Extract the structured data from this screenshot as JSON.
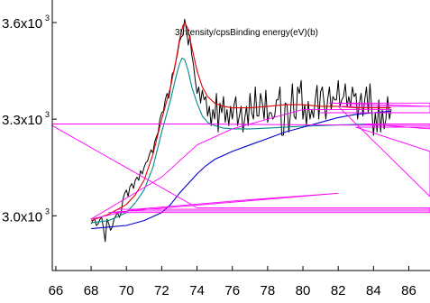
{
  "chart_data": {
    "type": "line",
    "title": "",
    "xlabel": "Binding energy (eV)",
    "ylabel": "Intensity/cps",
    "axis_title_lettering": "3Intensity/cpsBinding energy(eV)(b)",
    "xlim": [
      65.8,
      87.2
    ],
    "ylim": [
      2830,
      3670
    ],
    "x_ticks": [
      66,
      68,
      70,
      72,
      74,
      76,
      78,
      80,
      82,
      84,
      86
    ],
    "x_tick_labels": [
      "66",
      "68",
      "70",
      "72",
      "74",
      "76",
      "78",
      "80",
      "82",
      "84",
      "86"
    ],
    "y_ticks": [
      3000,
      3300,
      3600
    ],
    "y_tick_labels": [
      {
        "mantissa": "3.0x10",
        "exponent": "3"
      },
      {
        "mantissa": "3.3x10",
        "exponent": "3"
      },
      {
        "mantissa": "3.6x10",
        "exponent": "3"
      }
    ],
    "grid": false,
    "legend": "none",
    "colors": {
      "raw": "#000000",
      "envelope": "#dd0000",
      "peak": "#008b8b",
      "background": "#0000cc",
      "artifact": "#ff00ff"
    },
    "series": [
      {
        "key": "raw",
        "style": "noisy",
        "x": [
          68.0,
          68.1,
          68.2,
          68.3,
          68.4,
          68.5,
          68.6,
          68.7,
          68.8,
          68.9,
          69.0,
          69.1,
          69.2,
          69.3,
          69.4,
          69.5,
          69.6,
          69.7,
          69.8,
          69.9,
          70.0,
          70.1,
          70.2,
          70.3,
          70.4,
          70.5,
          70.6,
          70.7,
          70.8,
          70.9,
          71.0,
          71.1,
          71.2,
          71.3,
          71.4,
          71.5,
          71.6,
          71.7,
          71.8,
          71.9,
          72.0,
          72.1,
          72.2,
          72.3,
          72.4,
          72.5,
          72.6,
          72.7,
          72.8,
          72.9,
          73.0,
          73.1,
          73.2,
          73.3,
          73.4,
          73.5,
          73.6,
          73.7,
          73.8,
          73.9,
          74.0,
          74.1,
          74.2,
          74.3,
          74.4,
          74.5,
          74.6,
          74.7,
          74.8,
          74.9,
          75.0,
          75.1,
          75.2,
          75.3,
          75.4,
          75.5,
          75.6,
          75.7,
          75.8,
          75.9,
          76.0,
          76.1,
          76.2,
          76.3,
          76.4,
          76.5,
          76.6,
          76.7,
          76.8,
          76.9,
          77.0,
          77.1,
          77.2,
          77.3,
          77.4,
          77.5,
          77.6,
          77.7,
          77.8,
          77.9,
          78.0,
          78.1,
          78.2,
          78.3,
          78.4,
          78.5,
          78.6,
          78.7,
          78.8,
          78.9,
          79.0,
          79.1,
          79.2,
          79.3,
          79.4,
          79.5,
          79.6,
          79.7,
          79.8,
          79.9,
          80.0,
          80.1,
          80.2,
          80.3,
          80.4,
          80.5,
          80.6,
          80.7,
          80.8,
          80.9,
          81.0,
          81.1,
          81.2,
          81.3,
          81.4,
          81.5,
          81.6,
          81.7,
          81.8,
          81.9,
          82.0,
          82.1,
          82.2,
          82.3,
          82.4,
          82.5,
          82.6,
          82.7,
          82.8,
          82.9,
          83.0,
          83.1,
          83.2,
          83.3,
          83.4,
          83.5,
          83.6,
          83.7,
          83.8,
          83.9,
          84.0,
          84.1,
          84.2,
          84.3,
          84.4,
          84.5,
          84.6,
          84.7,
          84.8,
          84.9,
          85.0
        ],
        "y": [
          2975,
          2985,
          2990,
          2970,
          2975,
          2990,
          2995,
          2960,
          2920,
          2990,
          2975,
          2955,
          2965,
          2990,
          3000,
          3010,
          2995,
          3010,
          3050,
          3070,
          3080,
          3060,
          3090,
          3100,
          3085,
          3110,
          3120,
          3110,
          3140,
          3130,
          3150,
          3165,
          3170,
          3190,
          3205,
          3195,
          3230,
          3245,
          3260,
          3300,
          3320,
          3325,
          3360,
          3380,
          3365,
          3400,
          3440,
          3450,
          3480,
          3505,
          3540,
          3555,
          3560,
          3610,
          3580,
          3530,
          3560,
          3500,
          3470,
          3420,
          3380,
          3400,
          3350,
          3390,
          3360,
          3370,
          3310,
          3340,
          3280,
          3330,
          3300,
          3380,
          3260,
          3350,
          3320,
          3370,
          3290,
          3330,
          3280,
          3340,
          3300,
          3345,
          3370,
          3280,
          3310,
          3340,
          3260,
          3300,
          3340,
          3280,
          3380,
          3320,
          3300,
          3400,
          3310,
          3310,
          3380,
          3350,
          3300,
          3390,
          3290,
          3320,
          3320,
          3300,
          3310,
          3360,
          3360,
          3400,
          3250,
          3250,
          3350,
          3345,
          3260,
          3320,
          3410,
          3310,
          3300,
          3400,
          3380,
          3420,
          3300,
          3345,
          3280,
          3355,
          3300,
          3330,
          3305,
          3360,
          3405,
          3300,
          3385,
          3400,
          3350,
          3300,
          3360,
          3400,
          3330,
          3370,
          3360,
          3360,
          3420,
          3340,
          3360,
          3370,
          3410,
          3340,
          3370,
          3340,
          3400,
          3370,
          3380,
          3300,
          3350,
          3380,
          3310,
          3360,
          3400,
          3320,
          3410,
          3330,
          3250,
          3320,
          3260,
          3360,
          3260,
          3330,
          3270,
          3300,
          3370,
          3300,
          3330
        ]
      },
      {
        "key": "envelope",
        "style": "smooth",
        "x": [
          68.0,
          69.0,
          70.0,
          70.5,
          71.0,
          71.5,
          72.0,
          72.5,
          72.8,
          73.0,
          73.2,
          73.3,
          73.45,
          73.6,
          73.8,
          74.0,
          74.3,
          74.6,
          75.0,
          75.5,
          76.0,
          77.0,
          78.0,
          79.0,
          80.0,
          81.0,
          82.0,
          83.0,
          84.0,
          85.0
        ],
        "y": [
          2985,
          3005,
          3035,
          3065,
          3110,
          3190,
          3300,
          3400,
          3480,
          3545,
          3590,
          3600,
          3585,
          3550,
          3500,
          3450,
          3400,
          3370,
          3350,
          3340,
          3335,
          3335,
          3340,
          3345,
          3345,
          3340,
          3340,
          3335,
          3335,
          3335
        ]
      },
      {
        "key": "peak",
        "style": "smooth",
        "x": [
          68.0,
          69.0,
          70.0,
          70.5,
          71.0,
          71.5,
          72.0,
          72.5,
          72.8,
          73.0,
          73.15,
          73.3,
          73.5,
          73.7,
          74.0,
          74.3,
          74.6,
          75.0,
          75.5,
          76.0,
          77.0,
          78.0,
          79.0,
          80.0,
          81.0,
          82.0,
          83.0,
          84.0,
          85.0
        ],
        "y": [
          2978,
          2985,
          3010,
          3040,
          3080,
          3150,
          3260,
          3360,
          3430,
          3470,
          3490,
          3485,
          3450,
          3400,
          3350,
          3310,
          3290,
          3280,
          3272,
          3270,
          3270,
          3272,
          3275,
          3278,
          3280,
          3282,
          3284,
          3285,
          3285
        ]
      },
      {
        "key": "background",
        "style": "smooth",
        "x": [
          68.0,
          69.0,
          70.0,
          71.0,
          72.0,
          72.5,
          73.0,
          73.5,
          74.0,
          74.5,
          75.0,
          76.0,
          77.0,
          78.0,
          79.0,
          80.0,
          81.0,
          82.0,
          83.0,
          84.0,
          85.0
        ],
        "y": [
          2960,
          2965,
          2970,
          2985,
          3010,
          3035,
          3070,
          3100,
          3130,
          3155,
          3175,
          3200,
          3220,
          3240,
          3260,
          3275,
          3290,
          3305,
          3315,
          3320,
          3325
        ]
      },
      {
        "key": "artifact",
        "style": "polyline",
        "x": [
          85.0,
          80.0,
          76.0,
          74.0,
          72.0,
          68.0,
          70.5,
          77.0,
          82.0,
          69.0,
          87.2,
          87.2,
          70.0,
          87.2,
          87.2,
          69.5,
          87.2,
          87.2,
          74.0,
          65.8,
          65.8,
          74.0,
          87.2,
          87.2,
          83.5,
          87.2,
          87.2,
          83.0,
          87.2,
          87.2,
          82.0,
          87.2,
          87.2,
          81.5,
          87.2,
          87.2,
          81.0,
          87.2
        ],
        "y": [
          3330,
          3330,
          3270,
          3220,
          3120,
          2990,
          3020,
          3050,
          3070,
          3010,
          3010,
          3015,
          3015,
          3015,
          3020,
          3020,
          3020,
          3025,
          3025,
          3280,
          3285,
          3285,
          3280,
          3285,
          3285,
          3270,
          3275,
          3275,
          3200,
          3060,
          3340,
          3340,
          3350,
          3350,
          3340,
          3320,
          3320,
          3320
        ]
      }
    ]
  }
}
